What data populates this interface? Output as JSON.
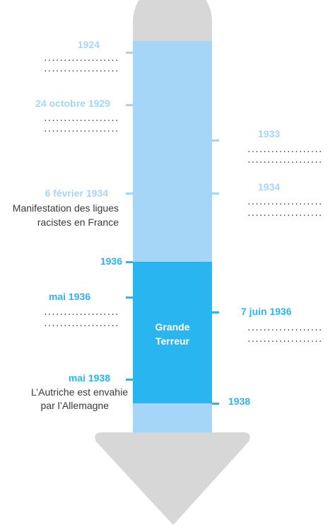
{
  "colors": {
    "gray": "#d7d7d7",
    "light_blue": "#a6d6f7",
    "strong_blue": "#29b6f0",
    "text_dark": "#3a3a3a"
  },
  "events_left": [
    {
      "date": "1924",
      "lines": [
        "...................",
        "..................."
      ]
    },
    {
      "date": "24 octobre 1929",
      "lines": [
        "...................",
        "..................."
      ]
    },
    {
      "date": "6 février 1934",
      "desc1": "Manifestation des ligues",
      "desc2": "racistes en France"
    },
    {
      "date": "1936"
    },
    {
      "date": "mai 1936",
      "lines": [
        "...................",
        "..................."
      ]
    },
    {
      "date": "mai 1938",
      "desc1": "L’Autriche est envahie",
      "desc2": "par l’Allemagne"
    }
  ],
  "events_right": [
    {
      "date": "1933",
      "lines": [
        "...................",
        "..................."
      ]
    },
    {
      "date": "1934",
      "lines": [
        "...................",
        "..................."
      ]
    },
    {
      "date": "7 juin 1936",
      "lines": [
        "...................",
        "..................."
      ]
    },
    {
      "date": "1938"
    }
  ],
  "period_label": [
    "Grande",
    "Terreur"
  ]
}
